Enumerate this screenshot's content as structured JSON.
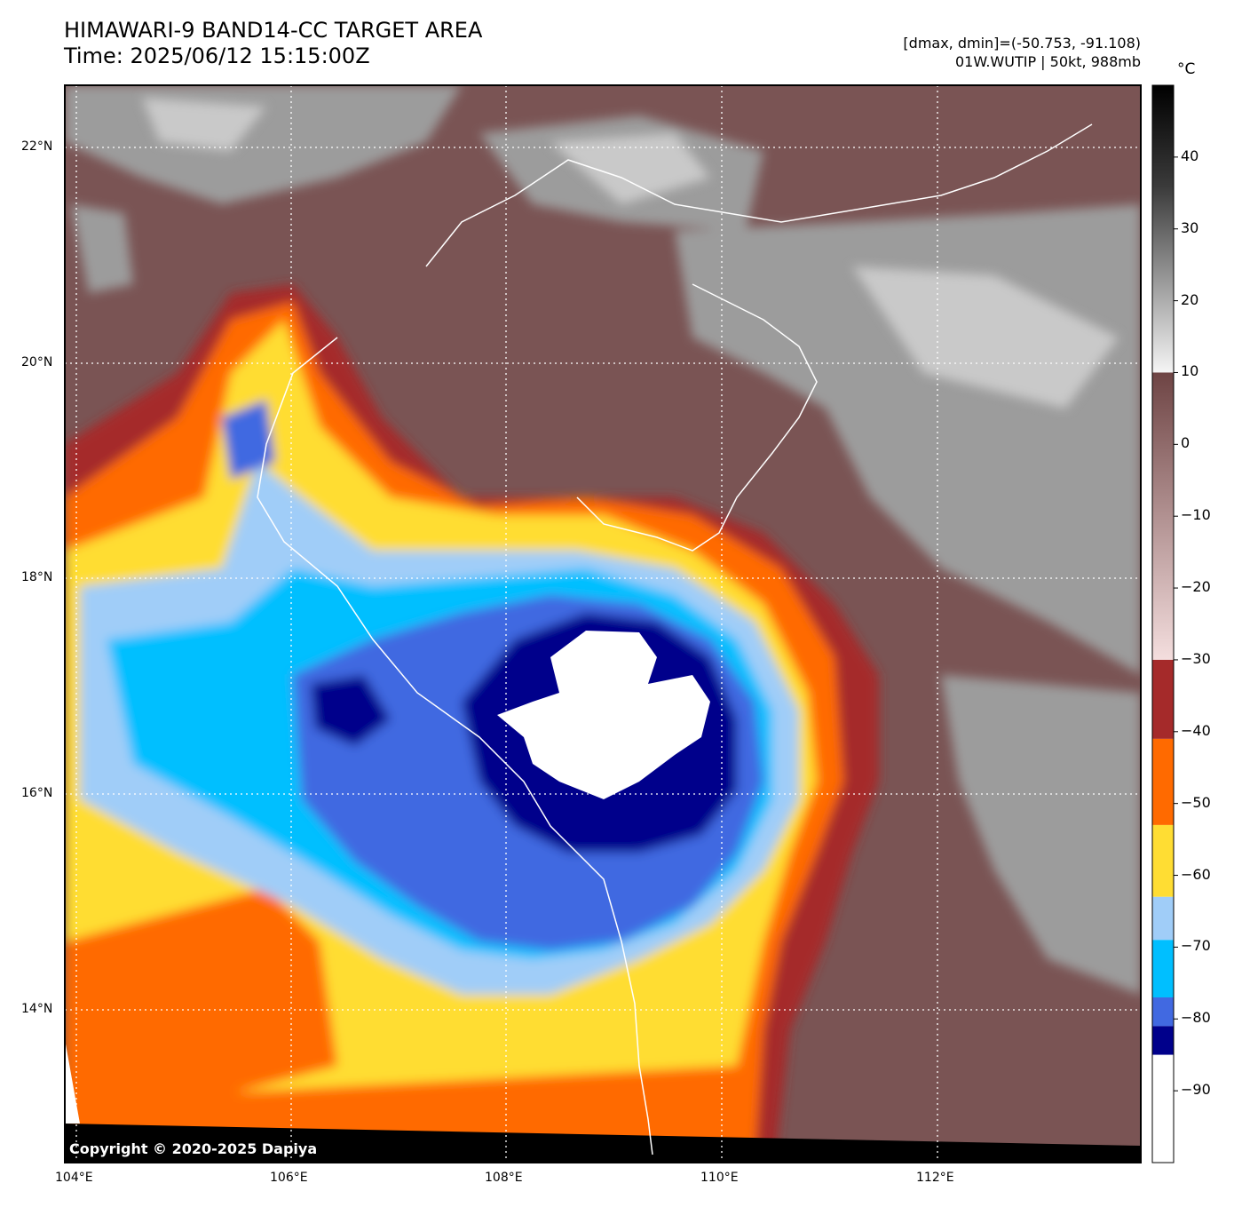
{
  "header": {
    "title_line1": "HIMAWARI-9 BAND14-CC TARGET AREA",
    "title_line2": "Time: 2025/06/12 15:15:00Z",
    "stats_line": "[dmax, dmin]=(-50.753, -91.108)",
    "storm_line": "01W.WUTIP | 50kt, 988mb"
  },
  "copyright": "Copyright © 2020-2025 Dapiya",
  "axes": {
    "lat_labels": [
      "22°N",
      "20°N",
      "18°N",
      "16°N",
      "14°N"
    ],
    "lon_labels": [
      "104°E",
      "106°E",
      "108°E",
      "110°E",
      "112°E"
    ]
  },
  "colorbar": {
    "unit": "°C",
    "ticks": [
      "40",
      "30",
      "20",
      "10",
      "0",
      "−10",
      "−20",
      "−30",
      "−40",
      "−50",
      "−60",
      "−70",
      "−80",
      "−90"
    ],
    "range": [
      -100,
      50
    ],
    "bands": [
      {
        "from": 10,
        "to": 50,
        "color": "grayscale"
      },
      {
        "from": -30,
        "to": 10,
        "color": "#8a5c5c"
      },
      {
        "from": -41,
        "to": -30,
        "color": "#a52a2a"
      },
      {
        "from": -53,
        "to": -41,
        "color": "#ff6a00"
      },
      {
        "from": -63,
        "to": -53,
        "color": "#ffdd33"
      },
      {
        "from": -69,
        "to": -63,
        "color": "#a0cdf8"
      },
      {
        "from": -77,
        "to": -69,
        "color": "#00bfff"
      },
      {
        "from": -81,
        "to": -77,
        "color": "#4169e1"
      },
      {
        "from": -85,
        "to": -81,
        "color": "#00008b"
      },
      {
        "from": -100,
        "to": -85,
        "color": "#ffffff"
      }
    ]
  },
  "colors": {
    "warm_land": "#7a5454",
    "gray_cloud": "#9a9a9a",
    "eye_core": "#ffffff",
    "gridline": "#ffffff",
    "coastline": "#ffffff"
  }
}
